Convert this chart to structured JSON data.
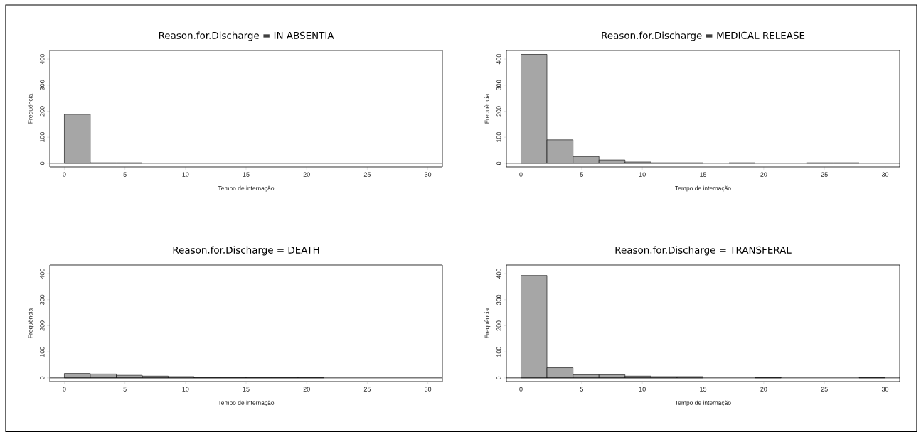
{
  "chart_data": [
    {
      "type": "histogram",
      "title": "Reason.for.Discharge = IN ABSENTIA",
      "xlabel": "Tempo de internação",
      "ylabel": "Frequência",
      "color": "#a6a6a6",
      "bins": [
        0,
        2.14,
        4.29,
        6.43,
        8.57,
        10.71,
        12.86,
        15,
        17.14,
        19.29,
        21.43,
        23.57,
        25.71,
        27.86,
        30
      ],
      "values": [
        188,
        2,
        2,
        0,
        0,
        0,
        0,
        0,
        0,
        0,
        0,
        0,
        0,
        0
      ],
      "xlim": [
        -1.2,
        31.2
      ],
      "ylim": [
        -14,
        433
      ],
      "xticks": [
        0,
        5,
        10,
        15,
        20,
        25,
        30
      ],
      "yticks": [
        0,
        100,
        200,
        300,
        400
      ],
      "ref_lines": [
        {
          "axis": "y",
          "value": 0
        }
      ]
    },
    {
      "type": "histogram",
      "title": "Reason.for.Discharge = MEDICAL RELEASE",
      "xlabel": "Tempo de internação",
      "ylabel": "Frequência",
      "color": "#a6a6a6",
      "bins": [
        0,
        2.14,
        4.29,
        6.43,
        8.57,
        10.71,
        12.86,
        15,
        17.14,
        19.29,
        21.43,
        23.57,
        25.71,
        27.86,
        30
      ],
      "values": [
        418,
        90,
        26,
        13,
        5,
        2,
        2,
        0,
        2,
        0,
        0,
        2,
        2,
        0
      ],
      "xlim": [
        -1.2,
        31.2
      ],
      "ylim": [
        -14,
        433
      ],
      "xticks": [
        0,
        5,
        10,
        15,
        20,
        25,
        30
      ],
      "yticks": [
        0,
        100,
        200,
        300,
        400
      ],
      "ref_lines": [
        {
          "axis": "y",
          "value": 0
        }
      ]
    },
    {
      "type": "histogram",
      "title": "Reason.for.Discharge = DEATH",
      "xlabel": "Tempo de internação",
      "ylabel": "Frequência",
      "color": "#a6a6a6",
      "bins": [
        0,
        2.14,
        4.29,
        6.43,
        8.57,
        10.71,
        12.86,
        15,
        17.14,
        19.29,
        21.43,
        23.57,
        25.71,
        27.86,
        30
      ],
      "values": [
        17,
        15,
        10,
        7,
        5,
        2,
        2,
        2,
        2,
        2,
        0,
        0,
        0,
        0
      ],
      "xlim": [
        -1.2,
        31.2
      ],
      "ylim": [
        -14,
        433
      ],
      "xticks": [
        0,
        5,
        10,
        15,
        20,
        25,
        30
      ],
      "yticks": [
        0,
        100,
        200,
        300,
        400
      ],
      "ref_lines": [
        {
          "axis": "y",
          "value": 0
        }
      ]
    },
    {
      "type": "histogram",
      "title": "Reason.for.Discharge = TRANSFERAL",
      "xlabel": "Tempo de internação",
      "ylabel": "Frequência",
      "color": "#a6a6a6",
      "bins": [
        0,
        2.14,
        4.29,
        6.43,
        8.57,
        10.71,
        12.86,
        15,
        17.14,
        19.29,
        21.43,
        23.57,
        25.71,
        27.86,
        30
      ],
      "values": [
        393,
        39,
        12,
        12,
        7,
        5,
        5,
        0,
        0,
        2,
        0,
        0,
        0,
        2
      ],
      "xlim": [
        -1.2,
        31.2
      ],
      "ylim": [
        -14,
        433
      ],
      "xticks": [
        0,
        5,
        10,
        15,
        20,
        25,
        30
      ],
      "yticks": [
        0,
        100,
        200,
        300,
        400
      ],
      "ref_lines": [
        {
          "axis": "y",
          "value": 0
        }
      ]
    }
  ]
}
